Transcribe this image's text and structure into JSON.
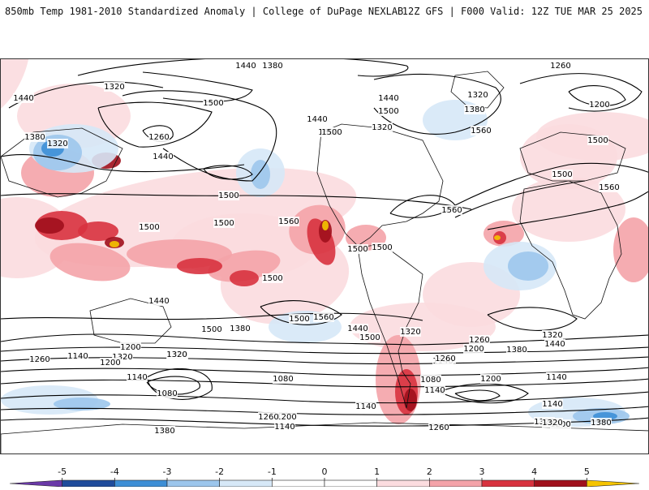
{
  "header": {
    "title_left": "850mb Temp 1981-2010 Standardized Anomaly | College of DuPage NEXLAB",
    "title_right": "12Z GFS | F000 Valid: 12Z TUE MAR 25 2025"
  },
  "map": {
    "contour_labels": [
      "1380",
      "1440",
      "1260",
      "1320",
      "1440",
      "1500",
      "1380",
      "1320",
      "1440",
      "1500",
      "1440",
      "1500",
      "1320",
      "1320",
      "1380",
      "1260",
      "1440",
      "1500",
      "1560",
      "1200",
      "1500",
      "1560",
      "1500",
      "1500",
      "1500",
      "1500",
      "1560",
      "1500",
      "1500",
      "1560",
      "1500",
      "1440",
      "1500",
      "1560",
      "1500",
      "1440",
      "1500",
      "1320",
      "1260",
      "1200",
      "1380",
      "1320",
      "1440",
      "1380",
      "1200",
      "1320",
      "1260",
      "1140",
      "1200",
      "1140",
      "1080",
      "1140",
      "1080",
      "1140",
      "1200",
      "1140",
      "1380",
      "1320",
      "1260",
      "1080",
      "1140",
      "1200",
      "1260",
      "1320",
      "1140",
      "1260",
      "1200",
      "1320",
      "1380",
      "1380",
      "1140"
    ],
    "colors": {
      "strong_warm": "#a0101c",
      "warm": "#d8323f",
      "mild_warm": "#f4a3a9",
      "faint_warm": "#fbdcdf",
      "extreme_warm": "#f5c400",
      "faint_cold": "#d6e8f7",
      "mild_cold": "#9cc6ec",
      "cold": "#3d8fd6",
      "strong_cold": "#1f4c9c",
      "extreme_cold": "#6a39a8"
    }
  },
  "colorbar": {
    "ticks": [
      "-5",
      "-4",
      "-3",
      "-2",
      "-1",
      "0",
      "1",
      "2",
      "3",
      "4",
      "5"
    ],
    "colors": [
      "#6a39a8",
      "#1f4c9c",
      "#3d8fd6",
      "#9cc6ec",
      "#d6e8f7",
      "#ffffff",
      "#ffffff",
      "#fbdcdf",
      "#f4a3a9",
      "#d8323f",
      "#a0101c",
      "#f5c400"
    ]
  }
}
